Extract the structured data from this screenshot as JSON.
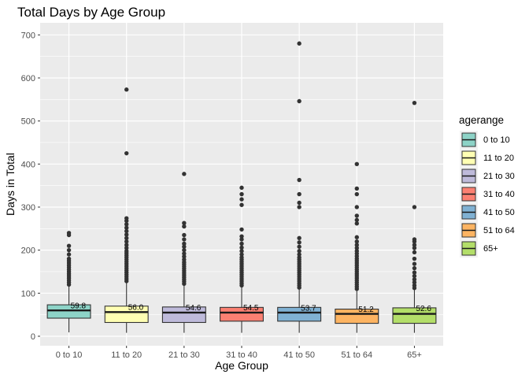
{
  "chart_data": {
    "type": "boxplot",
    "title": "Total Days by Age Group",
    "xlabel": "Age Group",
    "ylabel": "Days in Total",
    "ylim": [
      -22,
      728
    ],
    "yticks": [
      0,
      100,
      200,
      300,
      400,
      500,
      600,
      700
    ],
    "grid": true,
    "legend": {
      "title": "agerange",
      "position": "right"
    },
    "categories": [
      "0 to 10",
      "11 to 20",
      "21 to 30",
      "31 to 40",
      "41 to 50",
      "51 to 64",
      "65+"
    ],
    "colors": [
      "#8DD3C7",
      "#FFFFB3",
      "#BEBADA",
      "#FB8072",
      "#80B1D3",
      "#FDB462",
      "#B3DE69"
    ],
    "boxes": [
      {
        "whisker_low": 9,
        "q1": 42,
        "median": 60,
        "q3": 73,
        "whisker_high": 116,
        "mean_label": "59.8",
        "mean": 59.8,
        "outliers": [
          120,
          125,
          130,
          135,
          140,
          145,
          150,
          155,
          160,
          165,
          170,
          175,
          180,
          190,
          200,
          210,
          235,
          240
        ]
      },
      {
        "whisker_low": 8,
        "q1": 32,
        "median": 56,
        "q3": 70,
        "whisker_high": 126,
        "mean_label": "56.0",
        "mean": 56.0,
        "outliers": [
          128,
          133,
          138,
          143,
          148,
          153,
          158,
          163,
          168,
          173,
          178,
          183,
          188,
          193,
          198,
          205,
          212,
          220,
          228,
          236,
          244,
          252,
          260,
          268,
          274,
          425,
          573
        ]
      },
      {
        "whisker_low": 8,
        "q1": 32,
        "median": 55,
        "q3": 68,
        "whisker_high": 120,
        "mean_label": "54.6",
        "mean": 54.6,
        "outliers": [
          122,
          127,
          132,
          137,
          142,
          147,
          152,
          157,
          162,
          167,
          172,
          178,
          185,
          192,
          200,
          208,
          215,
          225,
          235,
          255,
          263,
          377
        ]
      },
      {
        "whisker_low": 8,
        "q1": 35,
        "median": 55,
        "q3": 67,
        "whisker_high": 115,
        "mean_label": "54.5",
        "mean": 54.5,
        "outliers": [
          118,
          123,
          128,
          133,
          138,
          143,
          148,
          153,
          158,
          163,
          168,
          173,
          178,
          183,
          190,
          198,
          206,
          215,
          225,
          232,
          248,
          305,
          318,
          330,
          345
        ]
      },
      {
        "whisker_low": 8,
        "q1": 35,
        "median": 55,
        "q3": 67,
        "whisker_high": 110,
        "mean_label": "53.7",
        "mean": 53.7,
        "outliers": [
          113,
          118,
          123,
          128,
          133,
          138,
          143,
          148,
          153,
          158,
          163,
          168,
          173,
          178,
          183,
          190,
          198,
          208,
          218,
          228,
          300,
          310,
          330,
          363,
          546,
          680
        ]
      },
      {
        "whisker_low": 8,
        "q1": 30,
        "median": 52,
        "q3": 63,
        "whisker_high": 106,
        "mean_label": "51.2",
        "mean": 51.2,
        "outliers": [
          110,
          115,
          120,
          125,
          130,
          135,
          140,
          145,
          150,
          155,
          160,
          165,
          170,
          175,
          180,
          186,
          192,
          198,
          205,
          212,
          220,
          230,
          262,
          270,
          280,
          300,
          330,
          343,
          400
        ]
      },
      {
        "whisker_low": 8,
        "q1": 30,
        "median": 52,
        "q3": 66,
        "whisker_high": 108,
        "mean_label": "52.6",
        "mean": 52.6,
        "outliers": [
          112,
          118,
          125,
          132,
          140,
          148,
          158,
          168,
          180,
          195,
          205,
          212,
          220,
          225,
          300,
          542
        ]
      }
    ]
  }
}
